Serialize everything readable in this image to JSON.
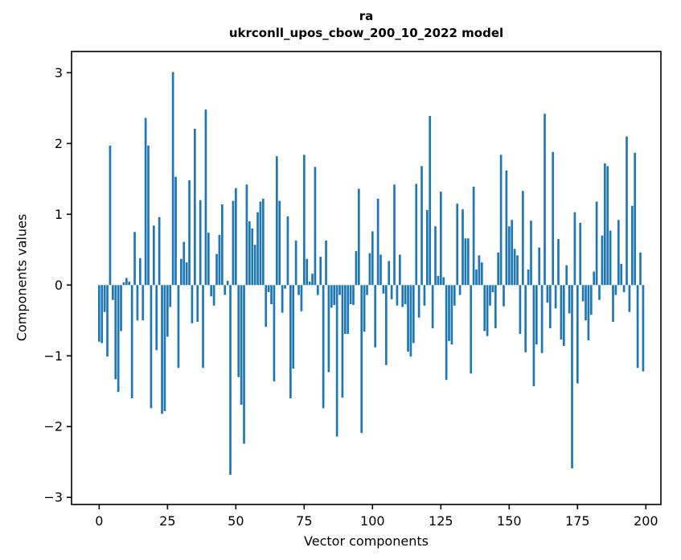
{
  "figure": {
    "title_line1": "ra",
    "title_line2": "ukrconll_upos_cbow_200_10_2022 model"
  },
  "chart_data": {
    "type": "bar",
    "title": "ra — ukrconll_upos_cbow_200_10_2022 model",
    "xlabel": "Vector components",
    "ylabel": "Components values",
    "n_components": 200,
    "bar_color": "#1f77b4",
    "axis_color": "#000000",
    "grid": false,
    "legend_position": "none",
    "xticks": [
      "0",
      "25",
      "50",
      "75",
      "100",
      "125",
      "150",
      "175",
      "200"
    ],
    "xtick_values": [
      0,
      25,
      50,
      75,
      100,
      125,
      150,
      175,
      200
    ],
    "yticks": [
      "−3",
      "−2",
      "−1",
      "0",
      "1",
      "2",
      "3"
    ],
    "ytick_values": [
      -3,
      -2,
      -1,
      0,
      1,
      2,
      3
    ],
    "xlim": [
      -10.1,
      205.5
    ],
    "ylim": [
      -3.1,
      3.3
    ],
    "values": [
      -0.8,
      -0.82,
      -0.38,
      -1.01,
      1.97,
      -0.21,
      -1.33,
      -1.51,
      -0.65,
      0.04,
      0.1,
      0.05,
      -1.6,
      0.75,
      -0.5,
      0.38,
      -0.5,
      2.36,
      1.97,
      -1.74,
      0.84,
      -0.92,
      0.96,
      -1.82,
      -1.78,
      -0.73,
      -0.31,
      3.01,
      1.53,
      -1.17,
      0.37,
      0.61,
      0.32,
      1.48,
      -0.54,
      2.21,
      -0.52,
      1.2,
      -1.17,
      2.48,
      0.74,
      -0.16,
      -0.29,
      0.44,
      0.71,
      1.14,
      -0.14,
      0.06,
      -2.68,
      1.19,
      1.37,
      -1.3,
      -1.69,
      -2.24,
      1.42,
      0.9,
      0.8,
      0.57,
      1.03,
      1.18,
      1.22,
      -0.59,
      -0.1,
      -0.27,
      -1.36,
      1.82,
      1.19,
      -0.39,
      -0.05,
      0.97,
      -1.6,
      -1.18,
      0.63,
      -0.14,
      -0.37,
      1.84,
      0.37,
      0.05,
      0.16,
      1.67,
      -0.14,
      0.4,
      -1.74,
      0.63,
      -1.23,
      -0.32,
      -0.28,
      -2.14,
      -0.14,
      -1.59,
      -0.69,
      -0.69,
      -0.27,
      -0.28,
      0.48,
      1.36,
      -2.09,
      -0.66,
      -0.14,
      0.45,
      0.76,
      -0.88,
      1.22,
      0.43,
      -0.12,
      -1.13,
      0.34,
      -0.2,
      1.42,
      -0.29,
      0.43,
      -0.31,
      -0.27,
      -0.94,
      -1.01,
      -0.82,
      1.43,
      -0.46,
      1.68,
      -0.29,
      1.06,
      2.39,
      -0.61,
      0.83,
      0.13,
      1.32,
      0.11,
      -1.34,
      -0.79,
      -0.84,
      -0.29,
      1.15,
      -0.14,
      1.07,
      0.66,
      0.66,
      -1.25,
      1.39,
      0.22,
      0.42,
      0.32,
      -0.65,
      -0.72,
      -0.29,
      -0.1,
      -0.61,
      0.46,
      1.84,
      -0.3,
      1.62,
      0.83,
      0.92,
      0.51,
      0.42,
      -0.69,
      1.33,
      -0.95,
      0.22,
      0.91,
      -1.43,
      -0.84,
      0.53,
      -0.96,
      2.42,
      -0.25,
      -0.61,
      1.88,
      -0.33,
      0.65,
      -0.77,
      -0.86,
      0.28,
      -0.4,
      -2.59,
      1.03,
      -1.39,
      0.88,
      -0.23,
      -0.5,
      -0.78,
      -0.42,
      0.19,
      1.18,
      -0.21,
      0.7,
      1.72,
      1.68,
      0.77,
      -0.52,
      -0.14,
      0.92,
      0.3,
      -0.1,
      2.1,
      -0.38,
      1.12,
      1.87,
      -1.17,
      0.46,
      -1.22
    ]
  }
}
